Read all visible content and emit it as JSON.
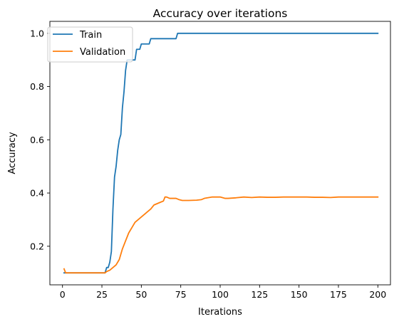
{
  "chart_data": {
    "type": "line",
    "title": "Accuracy over iterations",
    "xlabel": "Iterations",
    "ylabel": "Accuracy",
    "xlim": [
      -8,
      208
    ],
    "ylim": [
      0.055,
      1.045
    ],
    "xticks": [
      0,
      25,
      50,
      75,
      100,
      125,
      150,
      175,
      200
    ],
    "yticks": [
      0.2,
      0.4,
      0.6,
      0.8,
      1.0
    ],
    "ytick_labels": [
      "0.2",
      "0.4",
      "0.6",
      "0.8",
      "1.0"
    ],
    "grid": false,
    "legend_position": "upper-left",
    "series": [
      {
        "name": "Train",
        "color": "#1f77b4",
        "points": [
          [
            1,
            0.1
          ],
          [
            26,
            0.1
          ],
          [
            27,
            0.1
          ],
          [
            28,
            0.12
          ],
          [
            29,
            0.12
          ],
          [
            30,
            0.14
          ],
          [
            31,
            0.18
          ],
          [
            32,
            0.34
          ],
          [
            33,
            0.46
          ],
          [
            34,
            0.5
          ],
          [
            35,
            0.56
          ],
          [
            36,
            0.6
          ],
          [
            37,
            0.62
          ],
          [
            38,
            0.72
          ],
          [
            39,
            0.78
          ],
          [
            40,
            0.86
          ],
          [
            41,
            0.9
          ],
          [
            42,
            0.9
          ],
          [
            46,
            0.9
          ],
          [
            47,
            0.94
          ],
          [
            49,
            0.94
          ],
          [
            50,
            0.96
          ],
          [
            54,
            0.96
          ],
          [
            55,
            0.96
          ],
          [
            56,
            0.98
          ],
          [
            72,
            0.98
          ],
          [
            73,
            1.0
          ],
          [
            200,
            1.0
          ]
        ]
      },
      {
        "name": "Validation",
        "color": "#ff7f0e",
        "points": [
          [
            1,
            0.115
          ],
          [
            2,
            0.1
          ],
          [
            26,
            0.1
          ],
          [
            27,
            0.1
          ],
          [
            28,
            0.105
          ],
          [
            30,
            0.11
          ],
          [
            32,
            0.12
          ],
          [
            34,
            0.13
          ],
          [
            36,
            0.15
          ],
          [
            38,
            0.19
          ],
          [
            40,
            0.22
          ],
          [
            42,
            0.25
          ],
          [
            44,
            0.27
          ],
          [
            46,
            0.29
          ],
          [
            48,
            0.3
          ],
          [
            50,
            0.31
          ],
          [
            52,
            0.32
          ],
          [
            54,
            0.33
          ],
          [
            56,
            0.34
          ],
          [
            58,
            0.355
          ],
          [
            60,
            0.36
          ],
          [
            62,
            0.365
          ],
          [
            64,
            0.37
          ],
          [
            65,
            0.385
          ],
          [
            66,
            0.385
          ],
          [
            68,
            0.38
          ],
          [
            70,
            0.38
          ],
          [
            72,
            0.38
          ],
          [
            74,
            0.375
          ],
          [
            76,
            0.372
          ],
          [
            80,
            0.372
          ],
          [
            85,
            0.373
          ],
          [
            88,
            0.375
          ],
          [
            90,
            0.38
          ],
          [
            95,
            0.385
          ],
          [
            100,
            0.385
          ],
          [
            103,
            0.38
          ],
          [
            105,
            0.38
          ],
          [
            110,
            0.382
          ],
          [
            115,
            0.385
          ],
          [
            120,
            0.383
          ],
          [
            125,
            0.385
          ],
          [
            130,
            0.384
          ],
          [
            135,
            0.384
          ],
          [
            140,
            0.385
          ],
          [
            150,
            0.385
          ],
          [
            155,
            0.385
          ],
          [
            160,
            0.384
          ],
          [
            165,
            0.384
          ],
          [
            170,
            0.383
          ],
          [
            175,
            0.385
          ],
          [
            185,
            0.385
          ],
          [
            200,
            0.385
          ]
        ]
      }
    ]
  }
}
